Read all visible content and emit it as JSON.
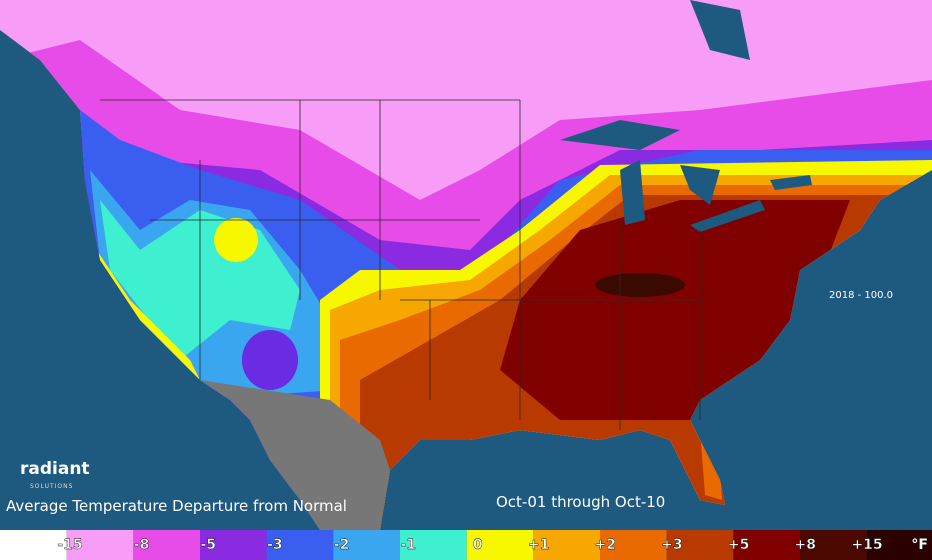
{
  "map": {
    "title": "Average Temperature Departure from Normal",
    "period": "Oct-01 through Oct-10",
    "run": "2018 - 100.0",
    "brand": {
      "name": "radiant",
      "tagline": "SOLUTIONS"
    },
    "legend": {
      "labels": [
        "-15",
        "-8",
        "-5",
        "-3",
        "-2",
        "-1",
        "0",
        "+1",
        "+2",
        "+3",
        "+5",
        "+8",
        "+15"
      ],
      "unit": "°F"
    }
  }
}
